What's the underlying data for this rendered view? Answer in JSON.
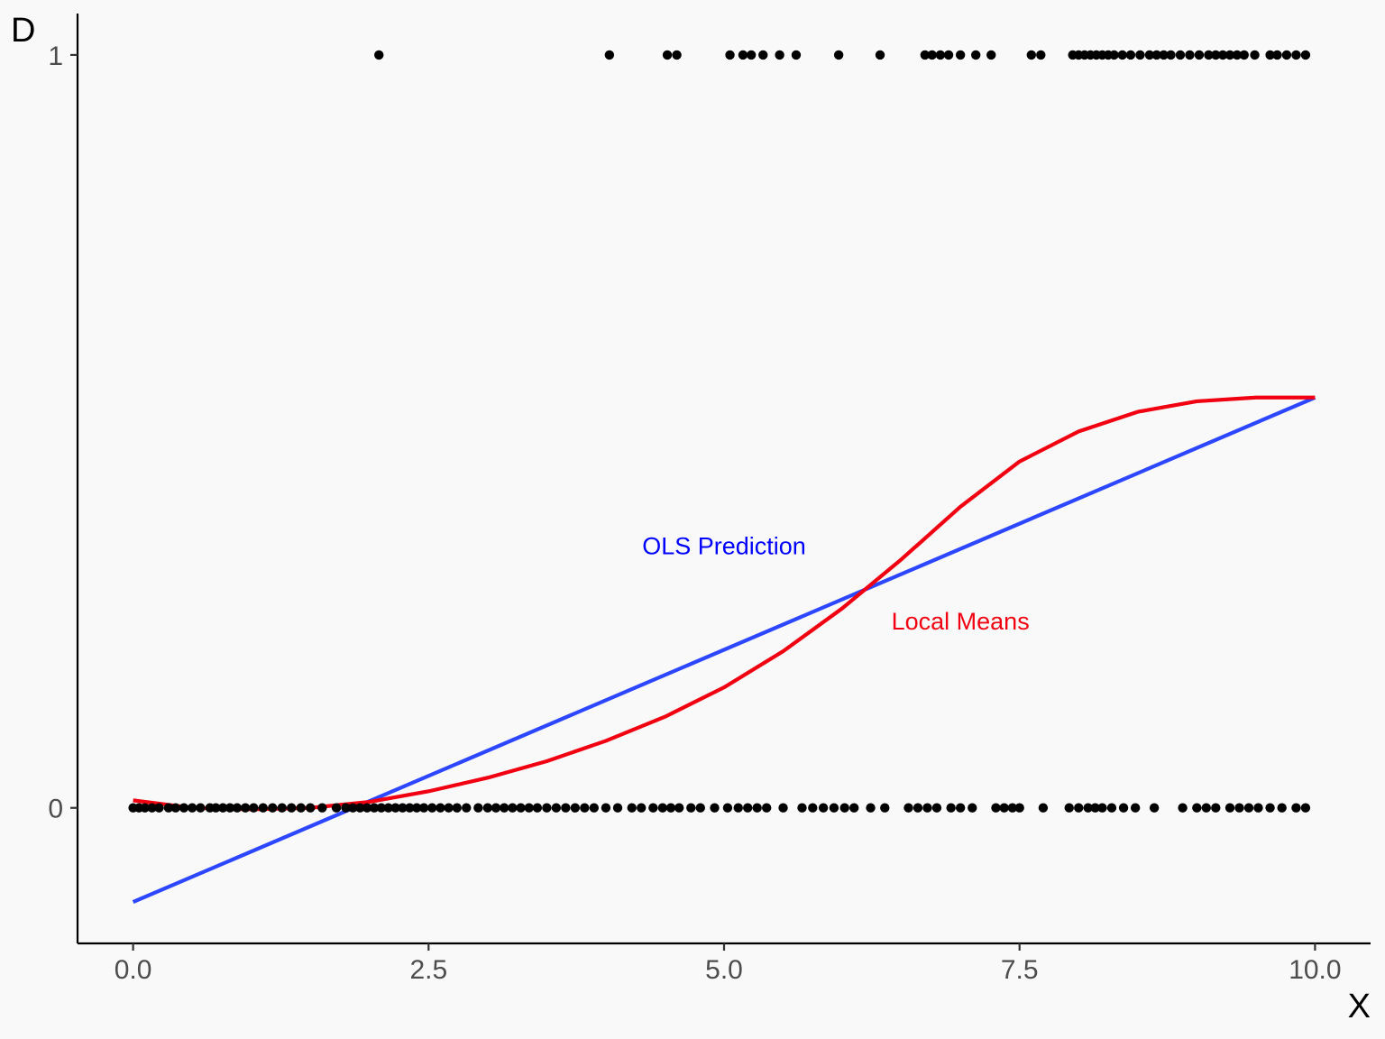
{
  "chart_data": {
    "type": "scatter",
    "title": "",
    "xlabel": "X",
    "ylabel": "D",
    "xlim": [
      -0.47,
      10.47
    ],
    "ylim": [
      -0.18,
      1.055
    ],
    "x_ticks": [
      0,
      2.5,
      5,
      7.5,
      10
    ],
    "x_tick_labels": [
      "0.0",
      "2.5",
      "5.0",
      "7.5",
      "10.0"
    ],
    "y_ticks": [
      0,
      1
    ],
    "y_tick_labels": [
      "0",
      "1"
    ],
    "grid": false,
    "legend": "none",
    "colors": {
      "points": "#000000",
      "ols": "#2c47ff",
      "local_means": "#f00010",
      "ols_label": "#0000ff",
      "local_means_label": "#f00010",
      "background": "#f9f9f9",
      "axis": "#000000",
      "tick_text": "#4d4d4d"
    },
    "series": [
      {
        "type": "scatter",
        "points_d1_x": [
          2.08,
          4.03,
          4.52,
          4.6,
          5.05,
          5.16,
          5.23,
          5.33,
          5.47,
          5.61,
          5.97,
          6.32,
          6.7,
          6.76,
          6.83,
          6.9,
          7.0,
          7.13,
          7.26,
          7.6,
          7.68,
          7.95,
          8.0,
          8.05,
          8.1,
          8.15,
          8.2,
          8.25,
          8.3,
          8.37,
          8.44,
          8.52,
          8.6,
          8.66,
          8.72,
          8.78,
          8.86,
          8.94,
          9.02,
          9.1,
          9.16,
          9.22,
          9.28,
          9.34,
          9.4,
          9.49,
          9.62,
          9.68,
          9.76,
          9.84,
          9.92
        ],
        "points_d0_x": [
          0.0,
          0.05,
          0.1,
          0.16,
          0.22,
          0.3,
          0.36,
          0.43,
          0.5,
          0.57,
          0.65,
          0.7,
          0.76,
          0.82,
          0.88,
          0.95,
          1.02,
          1.1,
          1.18,
          1.26,
          1.34,
          1.42,
          1.5,
          1.6,
          1.72,
          1.8,
          1.86,
          1.92,
          1.98,
          2.04,
          2.1,
          2.16,
          2.22,
          2.28,
          2.34,
          2.4,
          2.46,
          2.53,
          2.6,
          2.67,
          2.74,
          2.82,
          2.92,
          3.0,
          3.07,
          3.14,
          3.21,
          3.28,
          3.35,
          3.42,
          3.5,
          3.58,
          3.66,
          3.74,
          3.82,
          3.9,
          4.0,
          4.1,
          4.22,
          4.3,
          4.4,
          4.48,
          4.55,
          4.62,
          4.72,
          4.8,
          4.92,
          5.03,
          5.12,
          5.2,
          5.28,
          5.36,
          5.5,
          5.66,
          5.75,
          5.84,
          5.93,
          6.02,
          6.1,
          6.24,
          6.36,
          6.56,
          6.64,
          6.72,
          6.8,
          6.92,
          7.0,
          7.1,
          7.3,
          7.37,
          7.44,
          7.5,
          7.7,
          7.92,
          8.0,
          8.08,
          8.14,
          8.2,
          8.28,
          8.38,
          8.48,
          8.64,
          8.88,
          9.0,
          9.08,
          9.16,
          9.28,
          9.36,
          9.44,
          9.52,
          9.62,
          9.72,
          9.84,
          9.92
        ]
      },
      {
        "name": "OLS Prediction",
        "type": "line",
        "x": [
          0,
          10
        ],
        "y": [
          -0.125,
          0.545
        ]
      },
      {
        "name": "Local Means",
        "type": "line",
        "x": [
          0.0,
          0.5,
          1.0,
          1.5,
          2.0,
          2.5,
          3.0,
          3.5,
          4.0,
          4.5,
          5.0,
          5.5,
          6.0,
          6.5,
          7.0,
          7.5,
          8.0,
          8.5,
          9.0,
          9.5,
          10.0
        ],
        "y": [
          0.01,
          0.0,
          -0.002,
          0.0,
          0.008,
          0.022,
          0.04,
          0.062,
          0.089,
          0.121,
          0.16,
          0.208,
          0.265,
          0.33,
          0.4,
          0.46,
          0.5,
          0.526,
          0.54,
          0.545,
          0.545
        ]
      }
    ],
    "annotations": [
      {
        "text": "OLS Prediction",
        "x": 5.0,
        "y": 0.349,
        "series": "OLS Prediction"
      },
      {
        "text": "Local Means",
        "x": 7.0,
        "y": 0.249,
        "series": "Local Means"
      }
    ]
  }
}
